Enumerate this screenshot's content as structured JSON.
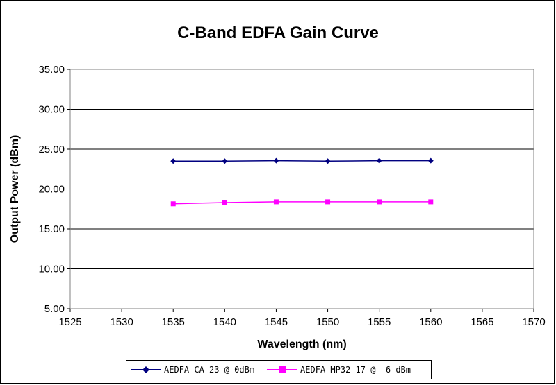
{
  "chart_data": {
    "type": "line",
    "title": "C-Band EDFA Gain Curve",
    "xlabel": "Wavelength (nm)",
    "ylabel": "Output Power (dBm)",
    "xlim": [
      1525,
      1570
    ],
    "ylim": [
      5,
      35
    ],
    "xticks": [
      1525,
      1530,
      1535,
      1540,
      1545,
      1550,
      1555,
      1560,
      1565,
      1570
    ],
    "yticks": [
      5,
      10,
      15,
      20,
      25,
      30,
      35
    ],
    "ytick_labels": [
      "5.00",
      "10.00",
      "15.00",
      "20.00",
      "25.00",
      "30.00",
      "35.00"
    ],
    "grid": "horizontal",
    "legend_position": "bottom",
    "x": [
      1535,
      1540,
      1545,
      1550,
      1555,
      1560
    ],
    "series": [
      {
        "name": "AEDFA-CA-23 @ 0dBm",
        "values": [
          23.5,
          23.5,
          23.55,
          23.5,
          23.55,
          23.55
        ],
        "color": "#000080",
        "marker": "diamond"
      },
      {
        "name": "AEDFA-MP32-17 @ -6 dBm",
        "values": [
          18.15,
          18.3,
          18.4,
          18.4,
          18.4,
          18.4
        ],
        "color": "#ff00ff",
        "marker": "square"
      }
    ]
  }
}
